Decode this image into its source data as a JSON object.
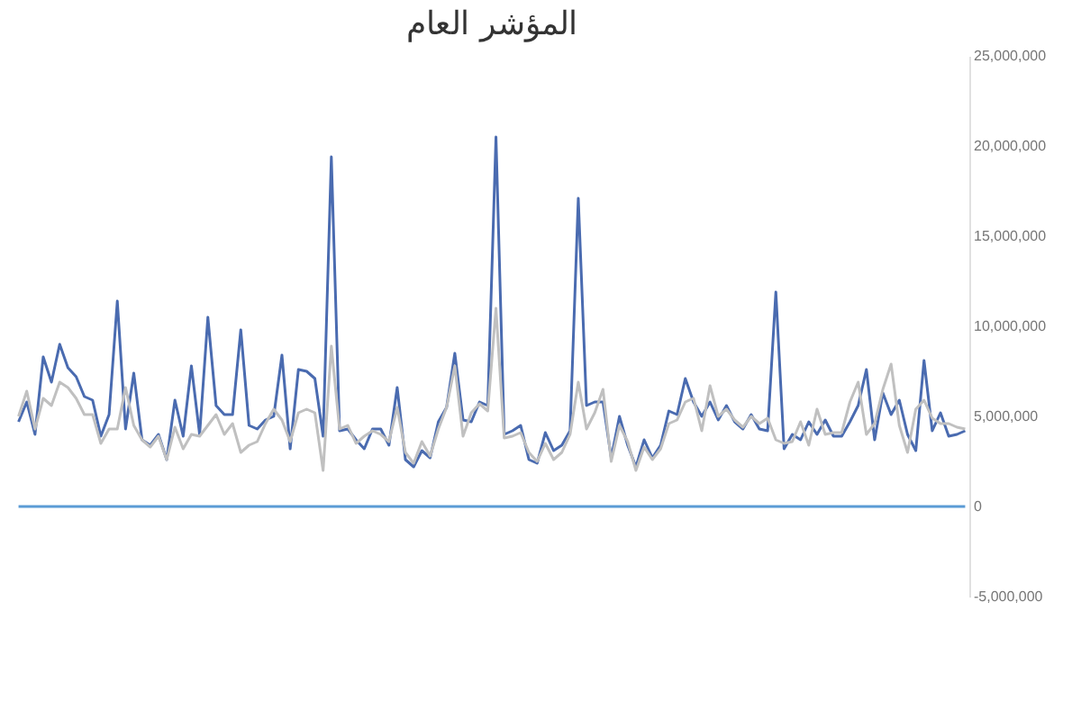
{
  "chart_data": {
    "type": "line",
    "title": "المؤشر العام",
    "categories": [
      null,
      null,
      null,
      null,
      null,
      null,
      null,
      null,
      null,
      null,
      null,
      null,
      null,
      null,
      null,
      null,
      null,
      null,
      null,
      null,
      null,
      null,
      null,
      null,
      null,
      null,
      null,
      null,
      null,
      null,
      null,
      null,
      null,
      null,
      null,
      null,
      null,
      null,
      null,
      null,
      null,
      null,
      null,
      null,
      null,
      null,
      null,
      null,
      null,
      null,
      null,
      null,
      null,
      null,
      null,
      null,
      null,
      null,
      null,
      null,
      null,
      null,
      null,
      null,
      null,
      null,
      null,
      null,
      null,
      null,
      null,
      null,
      null,
      null,
      null,
      null,
      null,
      null,
      null,
      null,
      null,
      null,
      null,
      null,
      null,
      null,
      null,
      null,
      null,
      null,
      null,
      null,
      null,
      null,
      null,
      null,
      null,
      null,
      null,
      null,
      null,
      null,
      null,
      null,
      null,
      null,
      null,
      null,
      null,
      null,
      null,
      null,
      null,
      null,
      null,
      null
    ],
    "series": [
      {
        "color": "#4a6bb0",
        "values": [
          4700000.0,
          5800000.0,
          4000000.0,
          8300000.0,
          6900000.0,
          9000000.0,
          7700000.0,
          7200000.0,
          6100000.0,
          5900000.0,
          3900000.0,
          5100000.0,
          11400000.0,
          4300000.0,
          7400000.0,
          3700000.0,
          3400000.0,
          4000000.0,
          2600000.0,
          5900000.0,
          3900000.0,
          7800000.0,
          4000000.0,
          10500000.0,
          5600000.0,
          5100000.0,
          5100000.0,
          9800000.0,
          4500000.0,
          4300000.0,
          4800000.0,
          5000000.0,
          8400000.0,
          3200000.0,
          7600000.0,
          7500000.0,
          7100000.0,
          3900000.0,
          19400000.0,
          4200000.0,
          4300000.0,
          3700000.0,
          3200000.0,
          4300000.0,
          4300000.0,
          3400000.0,
          6600000.0,
          2600000.0,
          2200000.0,
          3100000.0,
          2700000.0,
          4700000.0,
          5500000.0,
          8500000.0,
          4800000.0,
          4700000.0,
          5800000.0,
          5600000.0,
          20500000.0,
          4000000.0,
          4200000.0,
          4500000.0,
          2600000.0,
          2400000.0,
          4100000.0,
          3100000.0,
          3400000.0,
          4200000.0,
          17100000.0,
          5600000.0,
          5800000.0,
          5800000.0,
          2700000.0,
          5000000.0,
          3400000.0,
          2200000.0,
          3700000.0,
          2700000.0,
          3400000.0,
          5300000.0,
          5100000.0,
          7100000.0,
          5800000.0,
          5000000.0,
          5800000.0,
          4800000.0,
          5600000.0,
          4700000.0,
          4300000.0,
          5100000.0,
          4300000.0,
          4200000.0,
          11900000.0,
          3200000.0,
          4000000.0,
          3700000.0,
          4700000.0,
          4000000.0,
          4800000.0,
          3900000.0,
          3900000.0,
          4700000.0,
          5600000.0,
          7600000.0,
          3700000.0,
          6300000.0,
          5100000.0,
          5900000.0,
          4000000.0,
          3100000.0,
          8100000.0,
          4200000.0,
          5200000.0,
          3900000.0,
          4000000.0,
          4200000.0
        ]
      },
      {
        "color": "#c0c0c0",
        "values": [
          5000000.0,
          6400000.0,
          4300000.0,
          6000000.0,
          5600000.0,
          6900000.0,
          6600000.0,
          6000000.0,
          5100000.0,
          5100000.0,
          3500000.0,
          4300000.0,
          4300000.0,
          6600000.0,
          4500000.0,
          3700000.0,
          3300000.0,
          3900000.0,
          2600000.0,
          4400000.0,
          3200000.0,
          4000000.0,
          3900000.0,
          4500000.0,
          5100000.0,
          4000000.0,
          4600000.0,
          3000000.0,
          3400000.0,
          3600000.0,
          4600000.0,
          5400000.0,
          4800000.0,
          3600000.0,
          5200000.0,
          5400000.0,
          5200000.0,
          2000000.0,
          8900000.0,
          4300000.0,
          4500000.0,
          3500000.0,
          3900000.0,
          4200000.0,
          4000000.0,
          3600000.0,
          5500000.0,
          3000000.0,
          2400000.0,
          3600000.0,
          2800000.0,
          4300000.0,
          5500000.0,
          7800000.0,
          3900000.0,
          5200000.0,
          5700000.0,
          5300000.0,
          11000000.0,
          3800000.0,
          3900000.0,
          4100000.0,
          3000000.0,
          2500000.0,
          3500000.0,
          2600000.0,
          3000000.0,
          4000000.0,
          6900000.0,
          4300000.0,
          5200000.0,
          6500000.0,
          2500000.0,
          4500000.0,
          3600000.0,
          2000000.0,
          3300000.0,
          2600000.0,
          3200000.0,
          4600000.0,
          4800000.0,
          5800000.0,
          6000000.0,
          4200000.0,
          6700000.0,
          5000000.0,
          5400000.0,
          4800000.0,
          4400000.0,
          5000000.0,
          4600000.0,
          4900000.0,
          3700000.0,
          3500000.0,
          3600000.0,
          4700000.0,
          3400000.0,
          5400000.0,
          4000000.0,
          4100000.0,
          4100000.0,
          5800000.0,
          6900000.0,
          4000000.0,
          4600000.0,
          6500000.0,
          7900000.0,
          4500000.0,
          3000000.0,
          5400000.0,
          5900000.0,
          4900000.0,
          4600000.0,
          4600000.0,
          4400000.0,
          4300000.0
        ]
      },
      {
        "color": "#5b9bd5",
        "values": [
          0,
          0,
          0,
          0,
          0,
          0,
          0,
          0,
          0,
          0,
          0,
          0,
          0,
          0,
          0,
          0,
          0,
          0,
          0,
          0,
          0,
          0,
          0,
          0,
          0,
          0,
          0,
          0,
          0,
          0,
          0,
          0,
          0,
          0,
          0,
          0,
          0,
          0,
          0,
          0,
          0,
          0,
          0,
          0,
          0,
          0,
          0,
          0,
          0,
          0,
          0,
          0,
          0,
          0,
          0,
          0,
          0,
          0,
          0,
          0,
          0,
          0,
          0,
          0,
          0,
          0,
          0,
          0,
          0,
          0,
          0,
          0,
          0,
          0,
          0,
          0,
          0,
          0,
          0,
          0,
          0,
          0,
          0,
          0,
          0,
          0,
          0,
          0,
          0,
          0,
          0,
          0,
          0,
          0,
          0,
          0,
          0,
          0,
          0,
          0,
          0,
          0,
          0,
          0,
          0,
          0,
          0,
          0,
          0,
          0,
          0,
          0,
          0,
          0,
          0,
          0
        ]
      }
    ],
    "ylim": [
      -5000000,
      25000000
    ],
    "yticks": [
      {
        "value": -5000000,
        "label": "-5,000,000"
      },
      0,
      {
        "value": 5000000,
        "label": "5,000,000"
      },
      {
        "value": 10000000,
        "label": "10,000,000"
      },
      {
        "value": 15000000,
        "label": "15,000,000"
      },
      {
        "value": 20000000,
        "label": "20,000,000"
      },
      {
        "value": 25000000,
        "label": "25,000,000"
      }
    ],
    "grid": false,
    "legend": false,
    "marker": "none",
    "line_style": "solid"
  }
}
